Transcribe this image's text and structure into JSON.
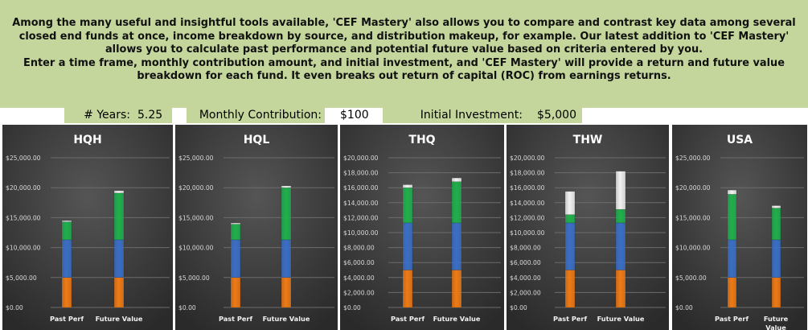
{
  "intro": {
    "lines": [
      "Among the many useful and insightful tools available, 'CEF Mastery' also allows you to compare and contrast key data among several",
      "closed end funds at once, income breakdown by source, and distribution makeup, for example.  Our latest addition to 'CEF Mastery'",
      "allows you to calculate past performance and potential future value based on criteria entered by you.",
      "Enter a time frame, monthly contribution amount, and initial investment, and 'CEF Mastery' will provide a return and future value",
      "breakdown for each fund.  It even breaks out return of capital (ROC) from earnings returns."
    ]
  },
  "inputs": {
    "years_label": "# Years:",
    "years_value": "5.25",
    "monthly_label": "Monthly Contribution:",
    "monthly_value": "$100",
    "initial_label": "Initial Investment:",
    "initial_value": "$5,000"
  },
  "colors": {
    "initial": "#f07a14",
    "contributions": "#3a6fc6",
    "earnings": "#1fb04c",
    "roc": "#f2f2f2",
    "chart_background": "#3a3a3a",
    "gridline": "#6c6c6c",
    "axis_text": "#d9d9d9"
  },
  "chart_data": [
    {
      "type": "bar",
      "title": "HQH",
      "categories": [
        "Past Perf",
        "Future Value"
      ],
      "ylim": [
        0,
        25000
      ],
      "yticks": [
        0,
        5000,
        10000,
        15000,
        20000,
        25000
      ],
      "tick_labels": [
        "$0.00",
        "$5,000.00",
        "$10,000.00",
        "$15,000.00",
        "$20,000.00",
        "$25,000.00"
      ],
      "grid": true,
      "stacks": [
        [
          {
            "component": "initial",
            "low": 0,
            "high": 5000
          },
          {
            "component": "contributions",
            "low": 5000,
            "high": 11300
          },
          {
            "component": "earnings",
            "low": 11300,
            "high": 14300
          },
          {
            "component": "roc",
            "low": 14300,
            "high": 14450
          }
        ],
        [
          {
            "component": "initial",
            "low": 0,
            "high": 5000
          },
          {
            "component": "contributions",
            "low": 5000,
            "high": 11300
          },
          {
            "component": "earnings",
            "low": 11300,
            "high": 19100
          },
          {
            "component": "roc",
            "low": 19100,
            "high": 19500
          }
        ]
      ]
    },
    {
      "type": "bar",
      "title": "HQL",
      "categories": [
        "Past Perf",
        "Future Value"
      ],
      "ylim": [
        0,
        25000
      ],
      "yticks": [
        0,
        5000,
        10000,
        15000,
        20000,
        25000
      ],
      "tick_labels": [
        "$0.00",
        "$5,000.00",
        "$10,000.00",
        "$15,000.00",
        "$20,000.00",
        "$25,000.00"
      ],
      "grid": true,
      "stacks": [
        [
          {
            "component": "initial",
            "low": 0,
            "high": 5000
          },
          {
            "component": "contributions",
            "low": 5000,
            "high": 11300
          },
          {
            "component": "earnings",
            "low": 11300,
            "high": 13900
          },
          {
            "component": "roc",
            "low": 13900,
            "high": 14000
          }
        ],
        [
          {
            "component": "initial",
            "low": 0,
            "high": 5000
          },
          {
            "component": "contributions",
            "low": 5000,
            "high": 11300
          },
          {
            "component": "earnings",
            "low": 11300,
            "high": 20000
          },
          {
            "component": "roc",
            "low": 20000,
            "high": 20300
          }
        ]
      ]
    },
    {
      "type": "bar",
      "title": "THQ",
      "categories": [
        "Past Perf",
        "Future Value"
      ],
      "ylim": [
        0,
        20000
      ],
      "yticks": [
        0,
        2000,
        4000,
        6000,
        8000,
        10000,
        12000,
        14000,
        16000,
        18000,
        20000
      ],
      "tick_labels": [
        "$0.00",
        "$2,000.00",
        "$4,000.00",
        "$6,000.00",
        "$8,000.00",
        "$10,000.00",
        "$12,000.00",
        "$14,000.00",
        "$16,000.00",
        "$18,000.00",
        "$20,000.00"
      ],
      "grid": true,
      "stacks": [
        [
          {
            "component": "initial",
            "low": 0,
            "high": 5000
          },
          {
            "component": "contributions",
            "low": 5000,
            "high": 11300
          },
          {
            "component": "earnings",
            "low": 11300,
            "high": 16000
          },
          {
            "component": "roc",
            "low": 16000,
            "high": 16400
          }
        ],
        [
          {
            "component": "initial",
            "low": 0,
            "high": 5000
          },
          {
            "component": "contributions",
            "low": 5000,
            "high": 11300
          },
          {
            "component": "earnings",
            "low": 11300,
            "high": 16800
          },
          {
            "component": "roc",
            "low": 16800,
            "high": 17300
          }
        ]
      ]
    },
    {
      "type": "bar",
      "title": "THW",
      "categories": [
        "Past Perf",
        "Future Value"
      ],
      "ylim": [
        0,
        20000
      ],
      "yticks": [
        0,
        2000,
        4000,
        6000,
        8000,
        10000,
        12000,
        14000,
        16000,
        18000,
        20000
      ],
      "tick_labels": [
        "$0.00",
        "$2,000.00",
        "$4,000.00",
        "$6,000.00",
        "$8,000.00",
        "$10,000.00",
        "$12,000.00",
        "$14,000.00",
        "$16,000.00",
        "$18,000.00",
        "$20,000.00"
      ],
      "grid": true,
      "stacks": [
        [
          {
            "component": "initial",
            "low": 0,
            "high": 5000
          },
          {
            "component": "contributions",
            "low": 5000,
            "high": 11300
          },
          {
            "component": "earnings",
            "low": 11300,
            "high": 12400
          },
          {
            "component": "roc",
            "low": 12400,
            "high": 15500
          }
        ],
        [
          {
            "component": "initial",
            "low": 0,
            "high": 5000
          },
          {
            "component": "contributions",
            "low": 5000,
            "high": 11300
          },
          {
            "component": "earnings",
            "low": 11300,
            "high": 13100
          },
          {
            "component": "roc",
            "low": 13100,
            "high": 18200
          }
        ]
      ]
    },
    {
      "type": "bar",
      "title": "USA",
      "categories": [
        "Past Perf",
        "Future\nValue"
      ],
      "ylim": [
        0,
        25000
      ],
      "yticks": [
        0,
        5000,
        10000,
        15000,
        20000,
        25000
      ],
      "tick_labels": [
        "$0.00",
        "$5,000.00",
        "$10,000.00",
        "$15,000.00",
        "$20,000.00",
        "$25,000.00"
      ],
      "grid": true,
      "stacks": [
        [
          {
            "component": "initial",
            "low": 0,
            "high": 5000
          },
          {
            "component": "contributions",
            "low": 5000,
            "high": 11300
          },
          {
            "component": "earnings",
            "low": 11300,
            "high": 18900
          },
          {
            "component": "roc",
            "low": 18900,
            "high": 19600
          }
        ],
        [
          {
            "component": "initial",
            "low": 0,
            "high": 5000
          },
          {
            "component": "contributions",
            "low": 5000,
            "high": 11300
          },
          {
            "component": "earnings",
            "low": 11300,
            "high": 16600
          },
          {
            "component": "roc",
            "low": 16600,
            "high": 17000
          }
        ]
      ]
    }
  ]
}
